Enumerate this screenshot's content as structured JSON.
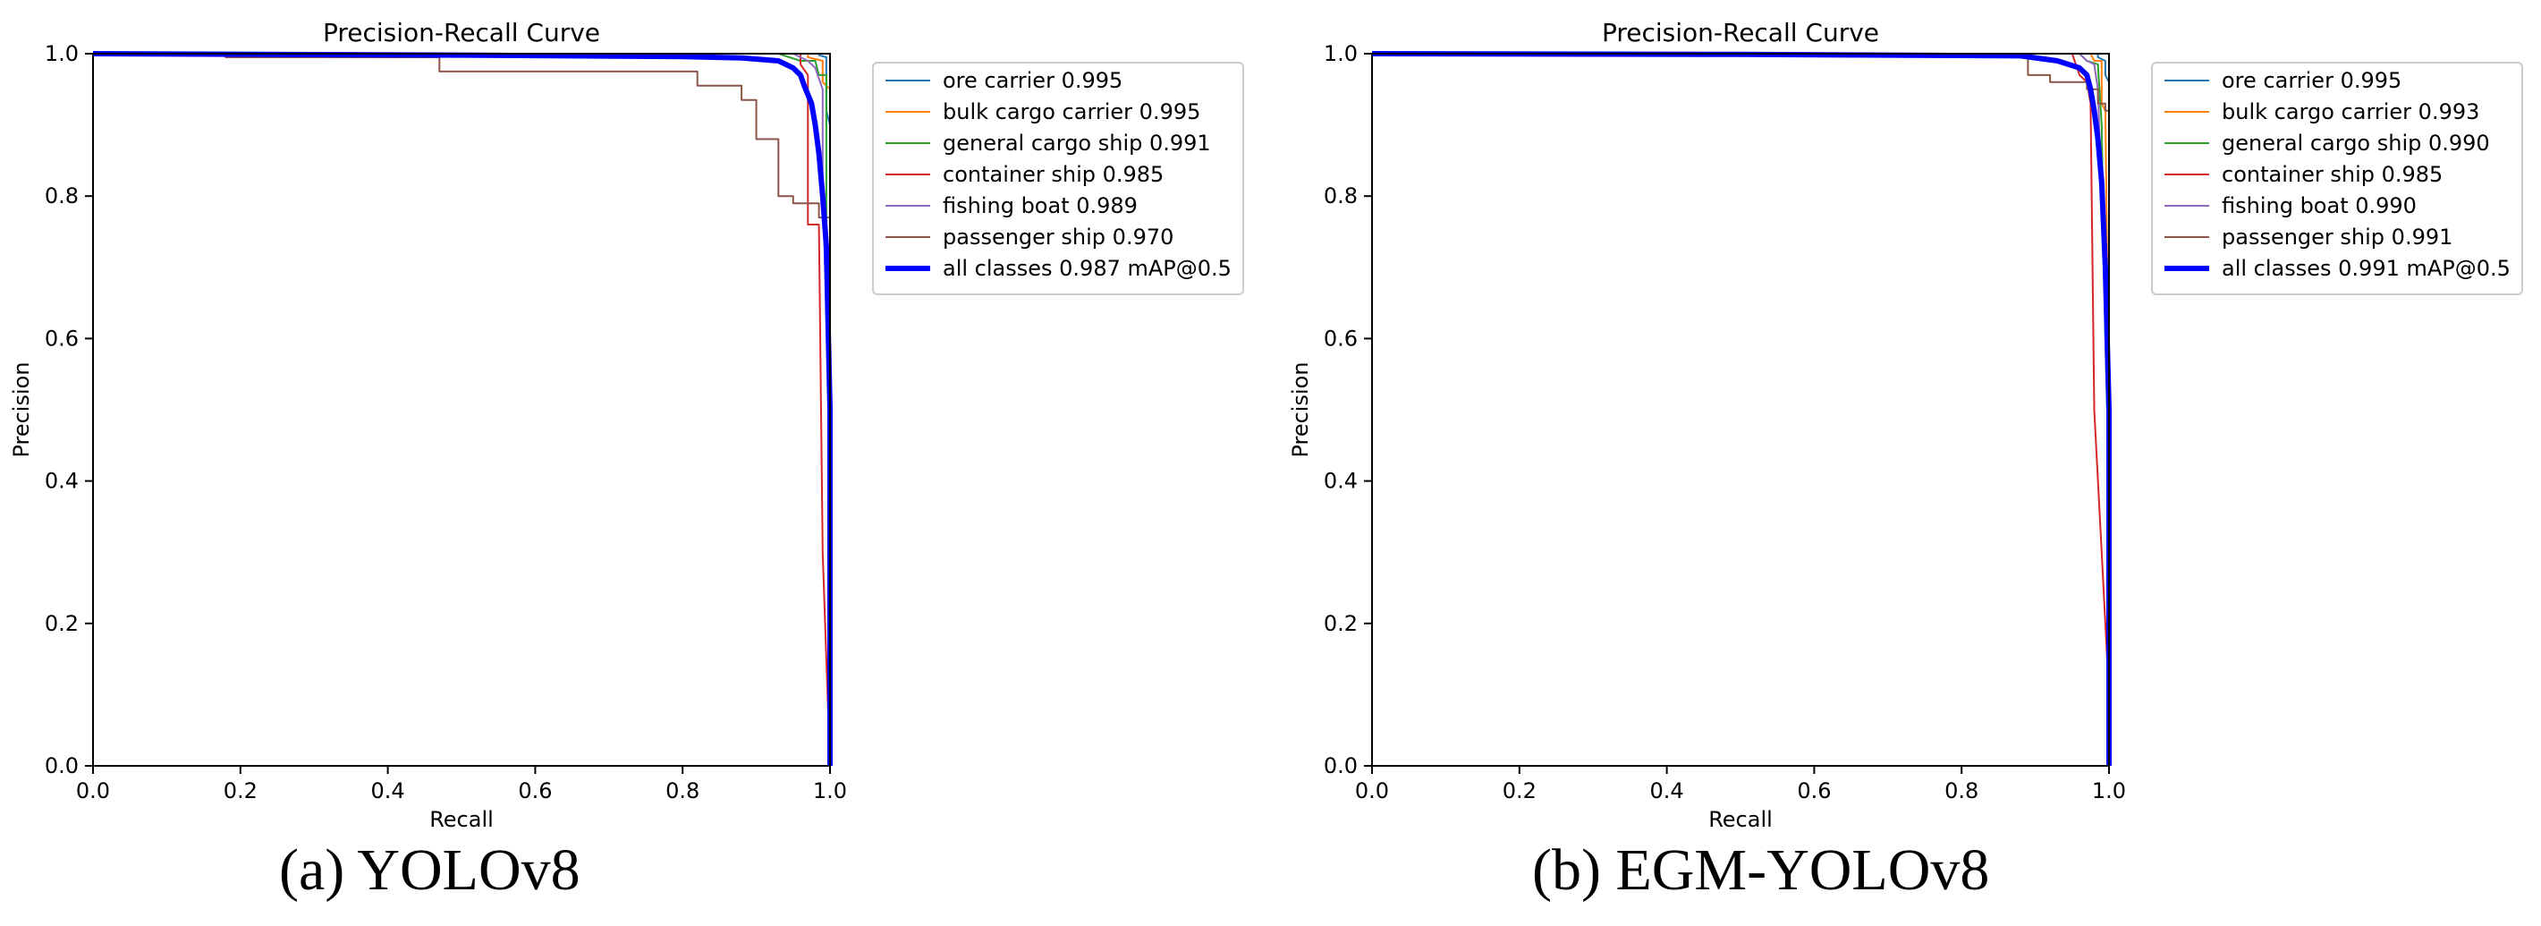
{
  "chart_data": [
    {
      "type": "line",
      "title": "Precision-Recall Curve",
      "xlabel": "Recall",
      "ylabel": "Precision",
      "xlim": [
        0,
        1
      ],
      "ylim": [
        0,
        1
      ],
      "xticks": [
        "0.0",
        "0.2",
        "0.4",
        "0.6",
        "0.8",
        "1.0"
      ],
      "yticks": [
        "0.0",
        "0.2",
        "0.4",
        "0.6",
        "0.8",
        "1.0"
      ],
      "legend_position": "outside-right-top",
      "caption": "(a) YOLOv8",
      "series": [
        {
          "name": "ore carrier 0.995",
          "color": "#1f77b4",
          "width": 2,
          "points": [
            [
              0,
              1
            ],
            [
              0.985,
              1
            ],
            [
              0.985,
              0.998
            ],
            [
              0.995,
              0.995
            ],
            [
              0.995,
              0.92
            ],
            [
              1,
              0.9
            ],
            [
              1,
              0
            ]
          ]
        },
        {
          "name": "bulk cargo carrier 0.995",
          "color": "#ff7f0e",
          "width": 2,
          "points": [
            [
              0,
              1
            ],
            [
              0.97,
              1
            ],
            [
              0.97,
              0.995
            ],
            [
              0.99,
              0.99
            ],
            [
              0.99,
              0.96
            ],
            [
              1,
              0.95
            ],
            [
              1,
              0
            ]
          ]
        },
        {
          "name": "general cargo ship 0.991",
          "color": "#2ca02c",
          "width": 2,
          "points": [
            [
              0,
              1
            ],
            [
              0.93,
              1
            ],
            [
              0.96,
              0.99
            ],
            [
              0.98,
              0.99
            ],
            [
              0.985,
              0.97
            ],
            [
              0.995,
              0.97
            ],
            [
              0.995,
              0.75
            ],
            [
              1,
              0.6
            ],
            [
              1,
              0
            ]
          ]
        },
        {
          "name": "container ship 0.985",
          "color": "#d62728",
          "width": 2,
          "points": [
            [
              0,
              1
            ],
            [
              0.96,
              1
            ],
            [
              0.96,
              0.985
            ],
            [
              0.97,
              0.97
            ],
            [
              0.97,
              0.76
            ],
            [
              0.985,
              0.76
            ],
            [
              0.99,
              0.3
            ],
            [
              1,
              0
            ]
          ]
        },
        {
          "name": "fishing boat 0.989",
          "color": "#9467bd",
          "width": 2,
          "points": [
            [
              0,
              1
            ],
            [
              0.95,
              1
            ],
            [
              0.97,
              0.99
            ],
            [
              0.98,
              0.98
            ],
            [
              0.99,
              0.95
            ],
            [
              0.99,
              0.8
            ],
            [
              1,
              0.5
            ],
            [
              1,
              0
            ]
          ]
        },
        {
          "name": "passenger ship 0.970",
          "color": "#8c564b",
          "width": 2,
          "points": [
            [
              0,
              1
            ],
            [
              0.18,
              1
            ],
            [
              0.18,
              0.995
            ],
            [
              0.47,
              0.995
            ],
            [
              0.47,
              0.975
            ],
            [
              0.82,
              0.975
            ],
            [
              0.82,
              0.955
            ],
            [
              0.88,
              0.955
            ],
            [
              0.88,
              0.935
            ],
            [
              0.9,
              0.935
            ],
            [
              0.9,
              0.88
            ],
            [
              0.93,
              0.88
            ],
            [
              0.93,
              0.8
            ],
            [
              0.95,
              0.8
            ],
            [
              0.95,
              0.79
            ],
            [
              0.985,
              0.79
            ],
            [
              0.985,
              0.77
            ],
            [
              1,
              0.77
            ],
            [
              1,
              0
            ]
          ]
        },
        {
          "name": "all classes 0.987 mAP@0.5",
          "color": "#0000ff",
          "width": 6,
          "points": [
            [
              0,
              1
            ],
            [
              0.5,
              0.998
            ],
            [
              0.8,
              0.996
            ],
            [
              0.88,
              0.994
            ],
            [
              0.93,
              0.99
            ],
            [
              0.95,
              0.98
            ],
            [
              0.96,
              0.97
            ],
            [
              0.965,
              0.955
            ],
            [
              0.975,
              0.93
            ],
            [
              0.98,
              0.9
            ],
            [
              0.985,
              0.86
            ],
            [
              0.99,
              0.8
            ],
            [
              0.995,
              0.73
            ],
            [
              1,
              0.5
            ],
            [
              1,
              0
            ]
          ]
        }
      ]
    },
    {
      "type": "line",
      "title": "Precision-Recall Curve",
      "xlabel": "Recall",
      "ylabel": "Precision",
      "xlim": [
        0,
        1
      ],
      "ylim": [
        0,
        1
      ],
      "xticks": [
        "0.0",
        "0.2",
        "0.4",
        "0.6",
        "0.8",
        "1.0"
      ],
      "yticks": [
        "0.0",
        "0.2",
        "0.4",
        "0.6",
        "0.8",
        "1.0"
      ],
      "legend_position": "outside-right-top",
      "caption": "(b) EGM-YOLOv8",
      "series": [
        {
          "name": "ore carrier 0.995",
          "color": "#1f77b4",
          "width": 2,
          "points": [
            [
              0,
              1
            ],
            [
              0.985,
              1
            ],
            [
              0.985,
              0.995
            ],
            [
              0.995,
              0.99
            ],
            [
              0.995,
              0.97
            ],
            [
              1,
              0.96
            ],
            [
              1,
              0
            ]
          ]
        },
        {
          "name": "bulk cargo carrier 0.993",
          "color": "#ff7f0e",
          "width": 2,
          "points": [
            [
              0,
              1
            ],
            [
              0.975,
              1
            ],
            [
              0.98,
              0.99
            ],
            [
              0.99,
              0.99
            ],
            [
              0.99,
              0.93
            ],
            [
              0.995,
              0.92
            ],
            [
              1,
              0.5
            ],
            [
              1,
              0
            ]
          ]
        },
        {
          "name": "general cargo ship 0.990",
          "color": "#2ca02c",
          "width": 2,
          "points": [
            [
              0,
              1
            ],
            [
              0.96,
              1
            ],
            [
              0.97,
              0.99
            ],
            [
              0.985,
              0.985
            ],
            [
              0.99,
              0.9
            ],
            [
              0.995,
              0.6
            ],
            [
              1,
              0.4
            ],
            [
              1,
              0
            ]
          ]
        },
        {
          "name": "container ship 0.985",
          "color": "#d62728",
          "width": 2,
          "points": [
            [
              0,
              1
            ],
            [
              0.95,
              1
            ],
            [
              0.96,
              0.97
            ],
            [
              0.97,
              0.96
            ],
            [
              0.975,
              0.93
            ],
            [
              0.98,
              0.5
            ],
            [
              0.99,
              0.3
            ],
            [
              1,
              0.1
            ],
            [
              1,
              0
            ]
          ]
        },
        {
          "name": "fishing boat 0.990",
          "color": "#9467bd",
          "width": 2,
          "points": [
            [
              0,
              1
            ],
            [
              0.96,
              1
            ],
            [
              0.97,
              0.99
            ],
            [
              0.98,
              0.985
            ],
            [
              0.985,
              0.95
            ],
            [
              0.99,
              0.8
            ],
            [
              1,
              0.5
            ],
            [
              1,
              0
            ]
          ]
        },
        {
          "name": "passenger ship 0.991",
          "color": "#8c564b",
          "width": 2,
          "points": [
            [
              0,
              1
            ],
            [
              0.21,
              1
            ],
            [
              0.21,
              0.998
            ],
            [
              0.89,
              0.998
            ],
            [
              0.89,
              0.97
            ],
            [
              0.92,
              0.97
            ],
            [
              0.92,
              0.96
            ],
            [
              0.97,
              0.96
            ],
            [
              0.97,
              0.95
            ],
            [
              0.985,
              0.95
            ],
            [
              0.985,
              0.93
            ],
            [
              0.995,
              0.93
            ],
            [
              0.995,
              0.92
            ],
            [
              1,
              0.92
            ],
            [
              1,
              0
            ]
          ]
        },
        {
          "name": "all classes 0.991 mAP@0.5",
          "color": "#0000ff",
          "width": 6,
          "points": [
            [
              0,
              1
            ],
            [
              0.5,
              0.999
            ],
            [
              0.88,
              0.997
            ],
            [
              0.93,
              0.99
            ],
            [
              0.96,
              0.98
            ],
            [
              0.97,
              0.97
            ],
            [
              0.975,
              0.95
            ],
            [
              0.98,
              0.92
            ],
            [
              0.985,
              0.88
            ],
            [
              0.99,
              0.82
            ],
            [
              0.995,
              0.7
            ],
            [
              1,
              0.5
            ],
            [
              1,
              0
            ]
          ]
        }
      ]
    }
  ]
}
